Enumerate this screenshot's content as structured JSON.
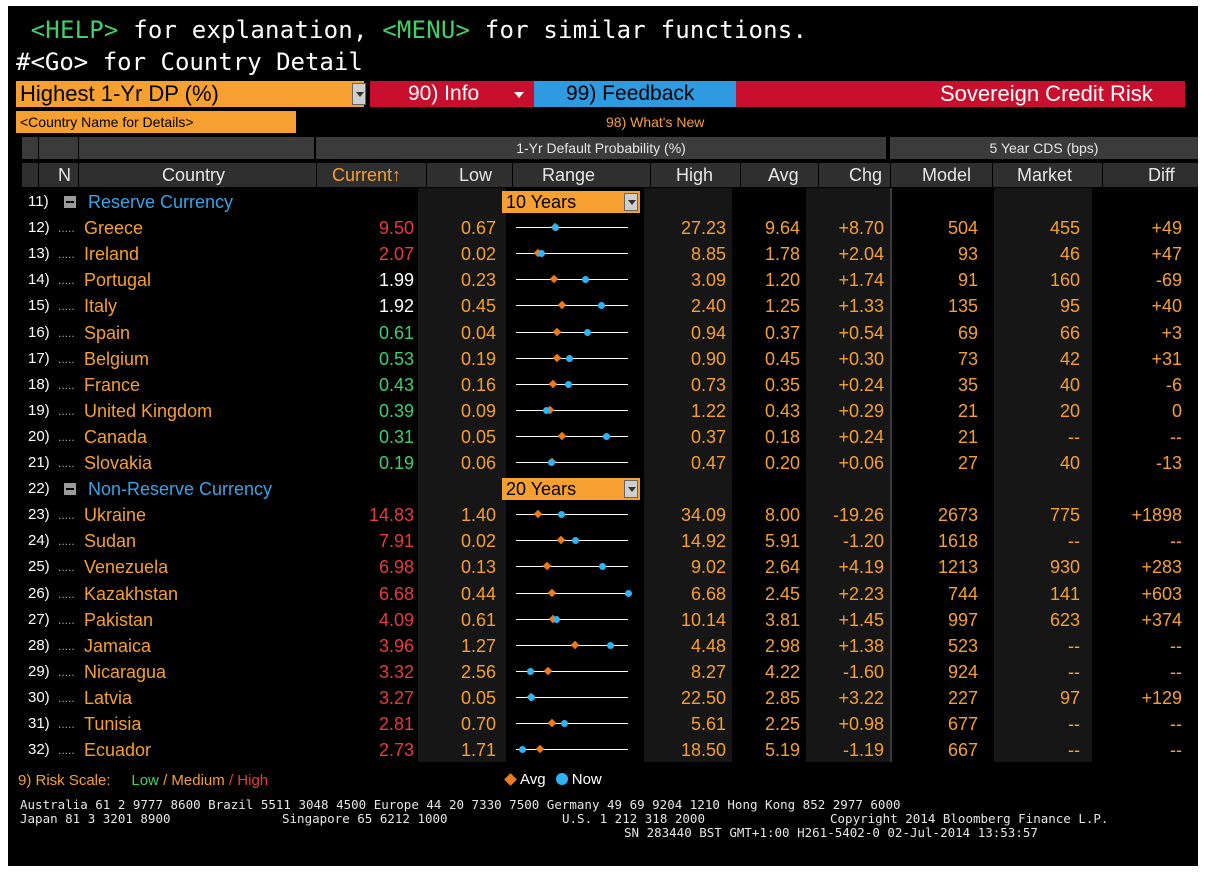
{
  "help_line": {
    "help_key": "<HELP>",
    "part1": " for explanation, ",
    "menu_key": "<MENU>",
    "part2": " for similar functions."
  },
  "go_line": "#<Go> for Country Detail",
  "toolbar": {
    "view_select": "Highest 1-Yr DP (%)",
    "info_label": "90) Info",
    "feedback_label": "99) Feedback",
    "screen_title": "Sovereign Credit Risk",
    "country_name_input": "<Country Name for Details>",
    "whats_new": "98) What's New"
  },
  "headers": {
    "group_dp": "1-Yr Default Probability (%)",
    "group_cds": "5 Year CDS (bps)",
    "cols": {
      "n": "N",
      "country": "Country",
      "current": "Current",
      "sort_icon": "↑",
      "low": "Low",
      "range": "Range",
      "high": "High",
      "avg": "Avg",
      "chg": "Chg",
      "model": "Model",
      "market": "Market",
      "diff": "Diff"
    }
  },
  "colors": {
    "orange": "#f5a031",
    "red_high": "#e83a3a",
    "white": "#ffffff",
    "green_low": "#3fd069",
    "group_blue": "#3aa3e8",
    "avg_marker": "#f07a1a",
    "now_marker": "#2fb3f5",
    "title_bar": "#c8102e"
  },
  "rows": [
    {
      "type": "group",
      "num": "11)",
      "label": "Reserve Currency",
      "period": "10 Years"
    },
    {
      "num": "12)",
      "country": "Greece",
      "current": "9.50",
      "level": "high",
      "low": "0.67",
      "high": "27.23",
      "avg": "9.64",
      "chg": "+8.70",
      "model": "504",
      "market": "455",
      "diff": "+49",
      "range": {
        "avg": 0.35,
        "now": 0.35
      }
    },
    {
      "num": "13)",
      "country": "Ireland",
      "current": "2.07",
      "level": "high",
      "low": "0.02",
      "high": "8.85",
      "avg": "1.78",
      "chg": "+2.04",
      "model": "93",
      "market": "46",
      "diff": "+47",
      "range": {
        "avg": 0.2,
        "now": 0.23
      }
    },
    {
      "num": "14)",
      "country": "Portugal",
      "current": "1.99",
      "level": "medium",
      "low": "0.23",
      "high": "3.09",
      "avg": "1.20",
      "chg": "+1.74",
      "model": "91",
      "market": "160",
      "diff": "-69",
      "range": {
        "avg": 0.34,
        "now": 0.62
      }
    },
    {
      "num": "15)",
      "country": "Italy",
      "current": "1.92",
      "level": "medium",
      "low": "0.45",
      "high": "2.40",
      "avg": "1.25",
      "chg": "+1.33",
      "model": "135",
      "market": "95",
      "diff": "+40",
      "range": {
        "avg": 0.41,
        "now": 0.76
      }
    },
    {
      "num": "16)",
      "country": "Spain",
      "current": "0.61",
      "level": "low",
      "low": "0.04",
      "high": "0.94",
      "avg": "0.37",
      "chg": "+0.54",
      "model": "69",
      "market": "66",
      "diff": "+3",
      "range": {
        "avg": 0.37,
        "now": 0.64
      }
    },
    {
      "num": "17)",
      "country": "Belgium",
      "current": "0.53",
      "level": "low",
      "low": "0.19",
      "high": "0.90",
      "avg": "0.45",
      "chg": "+0.30",
      "model": "73",
      "market": "42",
      "diff": "+31",
      "range": {
        "avg": 0.37,
        "now": 0.48
      }
    },
    {
      "num": "18)",
      "country": "France",
      "current": "0.43",
      "level": "low",
      "low": "0.16",
      "high": "0.73",
      "avg": "0.35",
      "chg": "+0.24",
      "model": "35",
      "market": "40",
      "diff": "-6",
      "range": {
        "avg": 0.33,
        "now": 0.47
      }
    },
    {
      "num": "19)",
      "country": "United Kingdom",
      "current": "0.39",
      "level": "low",
      "low": "0.09",
      "high": "1.22",
      "avg": "0.43",
      "chg": "+0.29",
      "model": "21",
      "market": "20",
      "diff": "0",
      "range": {
        "avg": 0.3,
        "now": 0.27
      }
    },
    {
      "num": "20)",
      "country": "Canada",
      "current": "0.31",
      "level": "low",
      "low": "0.05",
      "high": "0.37",
      "avg": "0.18",
      "chg": "+0.24",
      "model": "21",
      "market": "--",
      "diff": "--",
      "range": {
        "avg": 0.41,
        "now": 0.81
      }
    },
    {
      "num": "21)",
      "country": "Slovakia",
      "current": "0.19",
      "level": "low",
      "low": "0.06",
      "high": "0.47",
      "avg": "0.20",
      "chg": "+0.06",
      "model": "27",
      "market": "40",
      "diff": "-13",
      "range": {
        "avg": 0.32,
        "now": 0.32
      }
    },
    {
      "type": "group",
      "num": "22)",
      "label": "Non-Reserve Currency",
      "period": "20 Years"
    },
    {
      "num": "23)",
      "country": "Ukraine",
      "current": "14.83",
      "level": "high",
      "low": "1.40",
      "high": "34.09",
      "avg": "8.00",
      "chg": "-19.26",
      "model": "2673",
      "market": "775",
      "diff": "+1898",
      "range": {
        "avg": 0.2,
        "now": 0.41
      }
    },
    {
      "num": "24)",
      "country": "Sudan",
      "current": "7.91",
      "level": "high",
      "low": "0.02",
      "high": "14.92",
      "avg": "5.91",
      "chg": "-1.20",
      "model": "1618",
      "market": "--",
      "diff": "--",
      "range": {
        "avg": 0.4,
        "now": 0.53
      }
    },
    {
      "num": "25)",
      "country": "Venezuela",
      "current": "6.98",
      "level": "high",
      "low": "0.13",
      "high": "9.02",
      "avg": "2.64",
      "chg": "+4.19",
      "model": "1213",
      "market": "930",
      "diff": "+283",
      "range": {
        "avg": 0.28,
        "now": 0.77
      }
    },
    {
      "num": "26)",
      "country": "Kazakhstan",
      "current": "6.68",
      "level": "high",
      "low": "0.44",
      "high": "6.68",
      "avg": "2.45",
      "chg": "+2.23",
      "model": "744",
      "market": "141",
      "diff": "+603",
      "range": {
        "avg": 0.32,
        "now": 1.0
      }
    },
    {
      "num": "27)",
      "country": "Pakistan",
      "current": "4.09",
      "level": "high",
      "low": "0.61",
      "high": "10.14",
      "avg": "3.81",
      "chg": "+1.45",
      "model": "997",
      "market": "623",
      "diff": "+374",
      "range": {
        "avg": 0.33,
        "now": 0.36
      }
    },
    {
      "num": "28)",
      "country": "Jamaica",
      "current": "3.96",
      "level": "high",
      "low": "1.27",
      "high": "4.48",
      "avg": "2.98",
      "chg": "+1.38",
      "model": "523",
      "market": "--",
      "diff": "--",
      "range": {
        "avg": 0.53,
        "now": 0.84
      }
    },
    {
      "num": "29)",
      "country": "Nicaragua",
      "current": "3.32",
      "level": "high",
      "low": "2.56",
      "high": "8.27",
      "avg": "4.22",
      "chg": "-1.60",
      "model": "924",
      "market": "--",
      "diff": "--",
      "range": {
        "avg": 0.29,
        "now": 0.13
      }
    },
    {
      "num": "30)",
      "country": "Latvia",
      "current": "3.27",
      "level": "high",
      "low": "0.05",
      "high": "22.50",
      "avg": "2.85",
      "chg": "+3.22",
      "model": "227",
      "market": "97",
      "diff": "+129",
      "range": {
        "avg": 0.13,
        "now": 0.14
      }
    },
    {
      "num": "31)",
      "country": "Tunisia",
      "current": "2.81",
      "level": "high",
      "low": "0.70",
      "high": "5.61",
      "avg": "2.25",
      "chg": "+0.98",
      "model": "677",
      "market": "--",
      "diff": "--",
      "range": {
        "avg": 0.32,
        "now": 0.43
      }
    },
    {
      "num": "32)",
      "country": "Ecuador",
      "current": "2.73",
      "level": "high",
      "low": "1.71",
      "high": "18.50",
      "avg": "5.19",
      "chg": "-1.19",
      "model": "667",
      "market": "--",
      "diff": "--",
      "range": {
        "avg": 0.21,
        "now": 0.06
      }
    }
  ],
  "footer": {
    "risk_scale": "9) Risk Scale:",
    "risk_low": "Low",
    "risk_medium": "/ Medium",
    "risk_high": "/ High",
    "legend_avg": "Avg",
    "legend_now": "Now",
    "contacts_line1": "Australia 61 2 9777 8600 Brazil 5511 3048 4500 Europe 44 20 7330 7500 Germany 49 69 9204 1210 Hong Kong 852 2977 6000",
    "contacts_line2a": "Japan 81 3 3201 8900",
    "contacts_line2b": "Singapore 65 6212 1000",
    "contacts_line2c": "U.S. 1 212 318 2000",
    "copyright": "Copyright 2014 Bloomberg Finance L.P.",
    "session": "SN 283440 BST   GMT+1:00 H261-5402-0 02-Jul-2014 13:53:57"
  }
}
